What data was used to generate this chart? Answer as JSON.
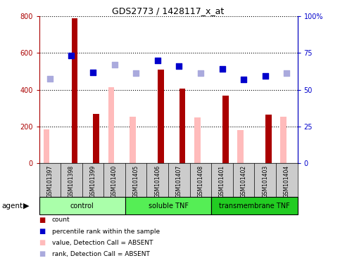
{
  "title": "GDS2773 / 1428117_x_at",
  "samples": [
    "GSM101397",
    "GSM101398",
    "GSM101399",
    "GSM101400",
    "GSM101405",
    "GSM101406",
    "GSM101407",
    "GSM101408",
    "GSM101401",
    "GSM101402",
    "GSM101403",
    "GSM101404"
  ],
  "count_values": [
    null,
    790,
    270,
    null,
    null,
    510,
    405,
    null,
    370,
    null,
    265,
    null
  ],
  "absent_value_values": [
    185,
    null,
    null,
    415,
    255,
    null,
    null,
    250,
    null,
    180,
    null,
    255
  ],
  "percentile_rank_left": [
    null,
    585,
    495,
    null,
    null,
    560,
    530,
    null,
    515,
    455,
    475,
    null
  ],
  "absent_rank_left": [
    460,
    null,
    null,
    535,
    490,
    null,
    null,
    490,
    null,
    null,
    null,
    490
  ],
  "groups": [
    {
      "label": "control",
      "start": 0,
      "end": 4,
      "color": "#aaffaa"
    },
    {
      "label": "soluble TNF",
      "start": 4,
      "end": 8,
      "color": "#55ee55"
    },
    {
      "label": "transmembrane TNF",
      "start": 8,
      "end": 12,
      "color": "#22cc22"
    }
  ],
  "ylim_left": [
    0,
    800
  ],
  "ylim_right": [
    0,
    100
  ],
  "yticks_left": [
    0,
    200,
    400,
    600,
    800
  ],
  "yticks_right": [
    0,
    25,
    50,
    75,
    100
  ],
  "yticklabels_left": [
    "0",
    "200",
    "400",
    "600",
    "800"
  ],
  "yticklabels_right": [
    "0",
    "25",
    "50",
    "75",
    "100%"
  ],
  "color_count": "#aa0000",
  "color_absent_value": "#ffbbbb",
  "color_percentile": "#0000cc",
  "color_absent_rank": "#aaaadd",
  "bar_width": 0.28,
  "dot_size": 40,
  "bg_gray": "#cccccc",
  "bg_white": "#ffffff"
}
